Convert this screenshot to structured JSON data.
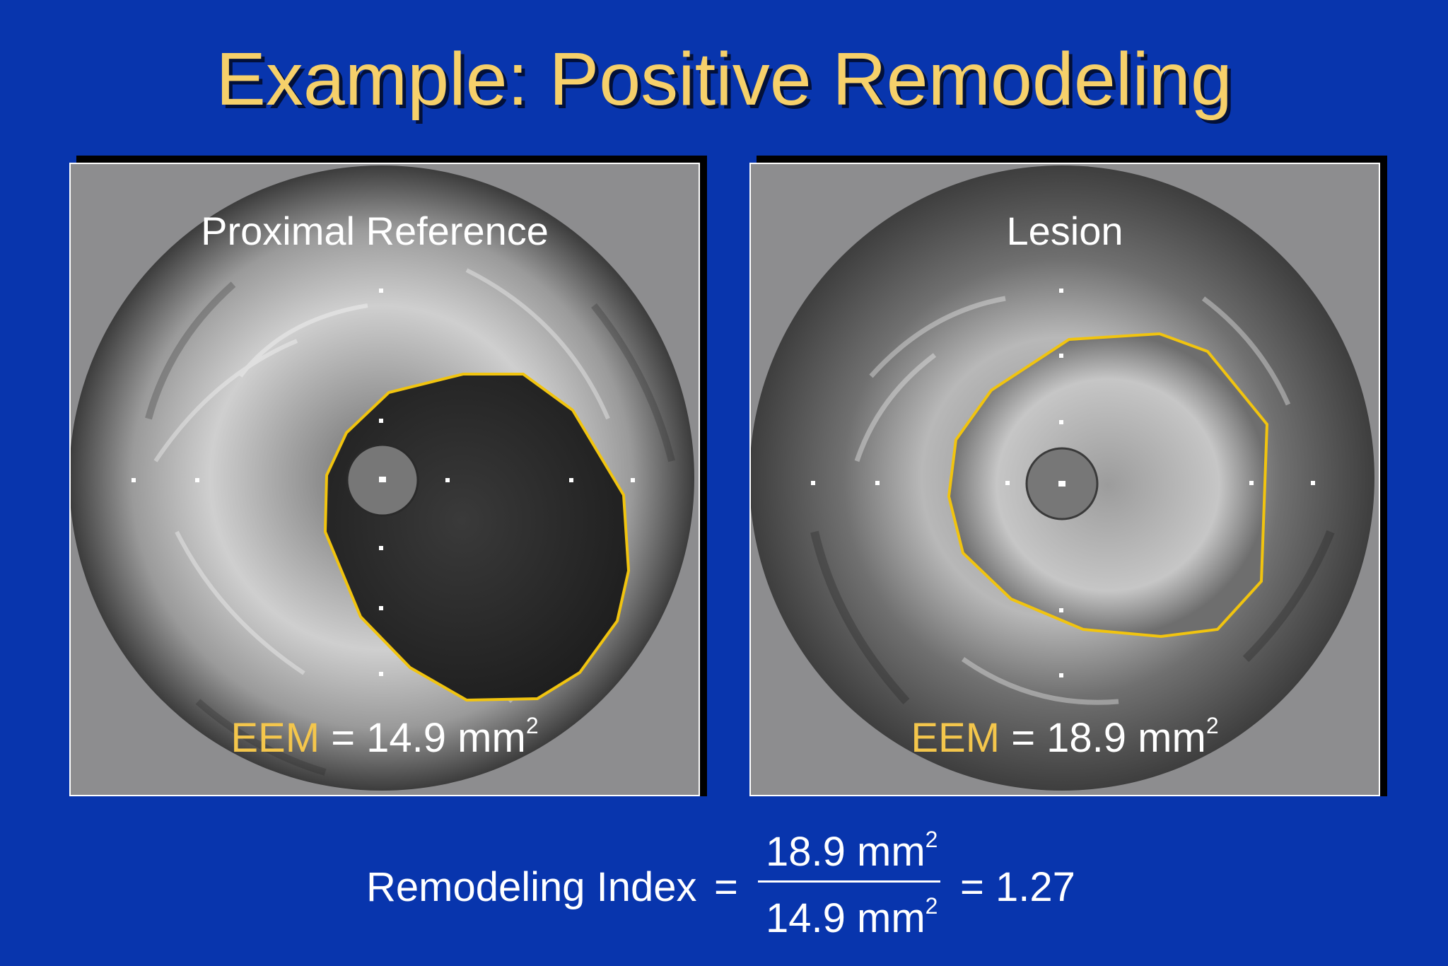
{
  "slide": {
    "title": "Example: Positive Remodeling",
    "colors": {
      "background": "#0835ad",
      "title": "#f6d06a",
      "eem_label": "#f4c64c",
      "contour": "#f1c40f"
    }
  },
  "panels": [
    {
      "label": "Proximal Reference",
      "eem_key": "EEM",
      "eem_value": "= 14.9 mm",
      "eem_unit_sup": "2"
    },
    {
      "label": "Lesion",
      "eem_key": "EEM",
      "eem_value": "= 18.9 mm",
      "eem_unit_sup": "2"
    }
  ],
  "formula": {
    "label": "Remodeling Index",
    "equals": "=",
    "numerator": "18.9 mm",
    "numerator_sup": "2",
    "denominator": "14.9 mm",
    "denominator_sup": "2",
    "result": "= 1.27"
  }
}
